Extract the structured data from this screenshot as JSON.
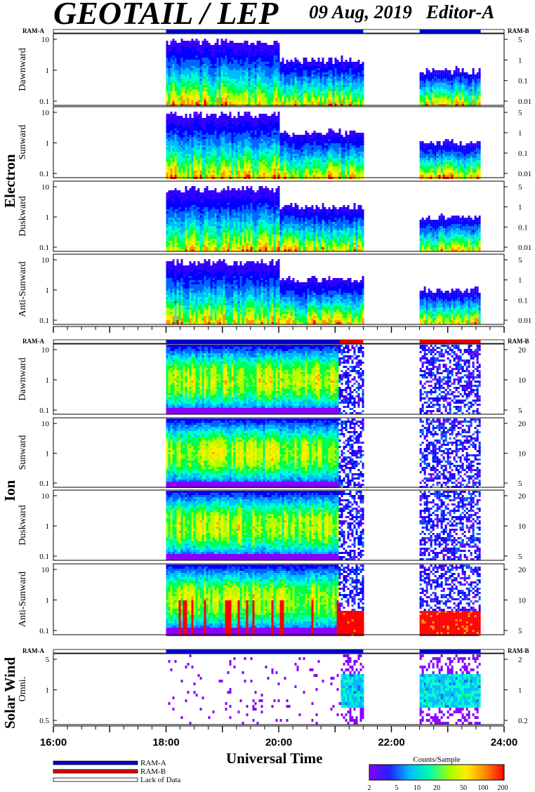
{
  "header": {
    "title": "GEOTAIL / LEP",
    "date": "09 Aug, 2019",
    "editor": "Editor-A"
  },
  "x_axis_title": "Universal Time",
  "colorbar": {
    "title": "Counts/Sample",
    "ticks": [
      "2",
      "5",
      "10",
      "20",
      "50",
      "100",
      "200"
    ]
  },
  "legend": [
    {
      "label": "RAM-A",
      "color": "#0000cc"
    },
    {
      "label": "RAM-B",
      "color": "#dd0000"
    },
    {
      "label": "Lack of Data",
      "color": "#ffffff"
    }
  ],
  "chart_data": [
    {
      "group": "Electron",
      "type": "heatmap",
      "x_range": [
        "16:00",
        "24:00"
      ],
      "x_ticks": [
        "16:00",
        "18:00",
        "20:00",
        "22:00",
        "24:00"
      ],
      "mode_bar": {
        "left_label": "RAM-A",
        "right_label": "RAM-B",
        "segments": [
          {
            "mode": "RAM-A",
            "start": "18:00",
            "end": "21:30"
          },
          {
            "mode": "RAM-A",
            "start": "22:30",
            "end": "23:35"
          }
        ]
      },
      "data_intervals": [
        [
          "18:00",
          "21:30"
        ],
        [
          "22:30",
          "23:35"
        ]
      ],
      "panels": [
        {
          "label": "Dawnward",
          "y_ticks_left": [
            "10",
            "1",
            "0.1"
          ],
          "y_ticks_right": [
            "5",
            "1",
            "0.1",
            "0.01"
          ]
        },
        {
          "label": "Sunward",
          "y_ticks_left": [
            "10",
            "1",
            "0.1"
          ],
          "y_ticks_right": [
            "5",
            "1",
            "0.1",
            "0.01"
          ]
        },
        {
          "label": "Duskward",
          "y_ticks_left": [
            "10",
            "1",
            "0.1"
          ],
          "y_ticks_right": [
            "5",
            "1",
            "0.1",
            "0.01"
          ]
        },
        {
          "label": "Anti-Sunward",
          "y_ticks_left": [
            "10",
            "1",
            "0.1"
          ],
          "y_ticks_right": [
            "5",
            "1",
            "0.1",
            "0.01"
          ]
        }
      ]
    },
    {
      "group": "Ion",
      "type": "heatmap",
      "x_range": [
        "16:00",
        "24:00"
      ],
      "mode_bar": {
        "left_label": "RAM-A",
        "right_label": "RAM-B",
        "segments": [
          {
            "mode": "RAM-A",
            "start": "18:00",
            "end": "21:05"
          },
          {
            "mode": "RAM-B",
            "start": "21:05",
            "end": "21:30"
          },
          {
            "mode": "RAM-B",
            "start": "22:30",
            "end": "23:35"
          }
        ]
      },
      "data_intervals": [
        [
          "18:00",
          "21:30"
        ],
        [
          "22:30",
          "23:35"
        ]
      ],
      "panels": [
        {
          "label": "Dawnward",
          "y_ticks_left": [
            "10",
            "1",
            "0.1"
          ],
          "y_ticks_right": [
            "20",
            "10",
            "5"
          ]
        },
        {
          "label": "Sunward",
          "y_ticks_left": [
            "10",
            "1",
            "0.1"
          ],
          "y_ticks_right": [
            "20",
            "10",
            "5"
          ]
        },
        {
          "label": "Duskward",
          "y_ticks_left": [
            "10",
            "1",
            "0.1"
          ],
          "y_ticks_right": [
            "20",
            "10",
            "5"
          ]
        },
        {
          "label": "Anti-Sunward",
          "y_ticks_left": [
            "10",
            "1",
            "0.1"
          ],
          "y_ticks_right": [
            "20",
            "10",
            "5"
          ]
        }
      ]
    },
    {
      "group": "Solar Wind",
      "type": "heatmap",
      "x_range": [
        "16:00",
        "24:00"
      ],
      "mode_bar": {
        "left_label": "RAM-A",
        "right_label": "RAM-B",
        "segments": [
          {
            "mode": "RAM-A",
            "start": "18:00",
            "end": "21:30"
          },
          {
            "mode": "RAM-A",
            "start": "22:30",
            "end": "23:35"
          }
        ]
      },
      "data_intervals": [
        [
          "18:00",
          "21:30"
        ],
        [
          "22:30",
          "23:35"
        ]
      ],
      "panels": [
        {
          "label": "Omni.",
          "y_ticks_left": [
            "5",
            "1",
            "0.5"
          ],
          "y_ticks_right": [
            "2",
            "1",
            "0.2"
          ]
        }
      ]
    }
  ],
  "colors": {
    "ramA": "#0000cc",
    "ramB": "#dd0000"
  }
}
